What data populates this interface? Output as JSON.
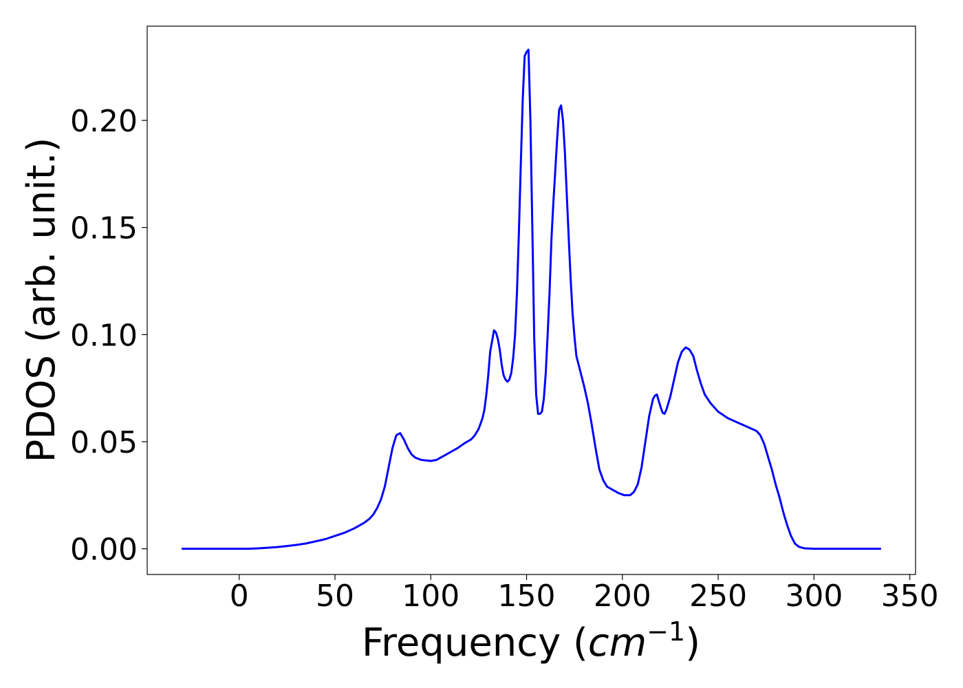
{
  "chart_data": {
    "type": "line",
    "xlabel_main": "Frequency (",
    "xlabel_unit": "cm",
    "xlabel_exp": "−1",
    "xlabel_close": ")",
    "ylabel": "PDOS (arb. unit.)",
    "xlim": [
      -48,
      353
    ],
    "ylim": [
      -0.012,
      0.244
    ],
    "xticks": [
      0,
      50,
      100,
      150,
      200,
      250,
      300,
      350
    ],
    "xtick_labels": [
      "0",
      "50",
      "100",
      "150",
      "200",
      "250",
      "300",
      "350"
    ],
    "yticks": [
      0.0,
      0.05,
      0.1,
      0.15,
      0.2
    ],
    "ytick_labels": [
      "0.00",
      "0.05",
      "0.10",
      "0.15",
      "0.20"
    ],
    "line_color": "#0000ff",
    "grid": false,
    "series": [
      {
        "points": [
          [
            -30,
            0.0
          ],
          [
            -20,
            0.0
          ],
          [
            -10,
            0.0
          ],
          [
            0,
            0.0
          ],
          [
            5,
            0.0
          ],
          [
            10,
            0.0002
          ],
          [
            15,
            0.0005
          ],
          [
            20,
            0.0008
          ],
          [
            25,
            0.0013
          ],
          [
            30,
            0.0018
          ],
          [
            35,
            0.0025
          ],
          [
            40,
            0.0035
          ],
          [
            45,
            0.0045
          ],
          [
            50,
            0.006
          ],
          [
            55,
            0.0075
          ],
          [
            60,
            0.0095
          ],
          [
            65,
            0.012
          ],
          [
            68,
            0.014
          ],
          [
            70,
            0.016
          ],
          [
            72,
            0.019
          ],
          [
            74,
            0.023
          ],
          [
            76,
            0.029
          ],
          [
            78,
            0.038
          ],
          [
            80,
            0.047
          ],
          [
            82,
            0.053
          ],
          [
            84,
            0.054
          ],
          [
            86,
            0.051
          ],
          [
            88,
            0.047
          ],
          [
            90,
            0.044
          ],
          [
            92,
            0.0425
          ],
          [
            95,
            0.0415
          ],
          [
            100,
            0.041
          ],
          [
            103,
            0.0415
          ],
          [
            106,
            0.043
          ],
          [
            110,
            0.045
          ],
          [
            114,
            0.047
          ],
          [
            118,
            0.0495
          ],
          [
            121,
            0.051
          ],
          [
            123,
            0.053
          ],
          [
            125,
            0.056
          ],
          [
            127,
            0.061
          ],
          [
            128,
            0.065
          ],
          [
            129,
            0.072
          ],
          [
            130,
            0.081
          ],
          [
            131,
            0.092
          ],
          [
            132,
            0.097
          ],
          [
            133,
            0.102
          ],
          [
            134,
            0.101
          ],
          [
            135,
            0.098
          ],
          [
            136,
            0.093
          ],
          [
            137,
            0.086
          ],
          [
            138,
            0.081
          ],
          [
            139,
            0.079
          ],
          [
            140,
            0.078
          ],
          [
            141,
            0.079
          ],
          [
            142,
            0.082
          ],
          [
            143,
            0.089
          ],
          [
            144,
            0.1
          ],
          [
            145,
            0.12
          ],
          [
            146,
            0.148
          ],
          [
            147,
            0.18
          ],
          [
            148,
            0.21
          ],
          [
            149,
            0.23
          ],
          [
            150,
            0.232
          ],
          [
            151,
            0.233
          ],
          [
            152,
            0.2
          ],
          [
            153,
            0.15
          ],
          [
            154,
            0.098
          ],
          [
            155,
            0.072
          ],
          [
            156,
            0.063
          ],
          [
            157,
            0.063
          ],
          [
            158,
            0.064
          ],
          [
            159,
            0.07
          ],
          [
            160,
            0.082
          ],
          [
            161,
            0.1
          ],
          [
            162,
            0.12
          ],
          [
            163,
            0.145
          ],
          [
            164,
            0.162
          ],
          [
            165,
            0.177
          ],
          [
            166,
            0.192
          ],
          [
            167,
            0.205
          ],
          [
            168,
            0.207
          ],
          [
            169,
            0.2
          ],
          [
            170,
            0.185
          ],
          [
            171,
            0.165
          ],
          [
            172,
            0.145
          ],
          [
            173,
            0.126
          ],
          [
            174,
            0.11
          ],
          [
            175,
            0.099
          ],
          [
            176,
            0.09
          ],
          [
            178,
            0.083
          ],
          [
            180,
            0.076
          ],
          [
            182,
            0.068
          ],
          [
            184,
            0.058
          ],
          [
            186,
            0.047
          ],
          [
            188,
            0.037
          ],
          [
            190,
            0.032
          ],
          [
            192,
            0.029
          ],
          [
            195,
            0.0275
          ],
          [
            198,
            0.026
          ],
          [
            201,
            0.025
          ],
          [
            204,
            0.025
          ],
          [
            206,
            0.0265
          ],
          [
            208,
            0.03
          ],
          [
            210,
            0.038
          ],
          [
            212,
            0.05
          ],
          [
            214,
            0.062
          ],
          [
            216,
            0.07
          ],
          [
            217,
            0.0715
          ],
          [
            218,
            0.072
          ],
          [
            219,
            0.069
          ],
          [
            220,
            0.066
          ],
          [
            221,
            0.0635
          ],
          [
            222,
            0.063
          ],
          [
            223,
            0.065
          ],
          [
            225,
            0.071
          ],
          [
            227,
            0.079
          ],
          [
            229,
            0.087
          ],
          [
            231,
            0.092
          ],
          [
            233,
            0.094
          ],
          [
            235,
            0.093
          ],
          [
            237,
            0.09
          ],
          [
            239,
            0.083
          ],
          [
            241,
            0.077
          ],
          [
            243,
            0.072
          ],
          [
            246,
            0.068
          ],
          [
            250,
            0.064
          ],
          [
            255,
            0.061
          ],
          [
            260,
            0.059
          ],
          [
            265,
            0.057
          ],
          [
            270,
            0.055
          ],
          [
            272,
            0.053
          ],
          [
            274,
            0.049
          ],
          [
            276,
            0.043
          ],
          [
            278,
            0.037
          ],
          [
            280,
            0.03
          ],
          [
            282,
            0.024
          ],
          [
            284,
            0.017
          ],
          [
            286,
            0.011
          ],
          [
            288,
            0.006
          ],
          [
            290,
            0.0025
          ],
          [
            292,
            0.001
          ],
          [
            295,
            0.0002
          ],
          [
            300,
            0.0
          ],
          [
            310,
            0.0
          ],
          [
            320,
            0.0
          ],
          [
            330,
            0.0
          ],
          [
            335,
            0.0
          ]
        ]
      }
    ]
  }
}
